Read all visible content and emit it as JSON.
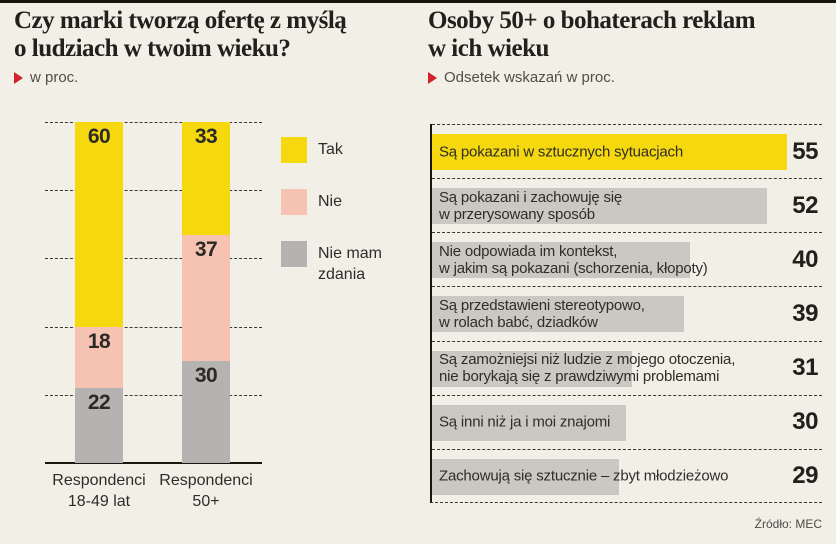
{
  "colors": {
    "background": "#f2efe7",
    "yellow": "#f6d80e",
    "pink": "#f6c3b3",
    "gray_dark": "#b4b3b1",
    "gray_light": "#cac8c2",
    "red_marker": "#d2222d",
    "ink": "#17160f"
  },
  "chart_data": [
    {
      "type": "bar",
      "subtype": "stacked-vertical",
      "title": "Czy marki tworzą ofertę z myślą o ludziach w twoim wieku?",
      "title_lines": [
        "Czy marki tworzą ofertę z myślą",
        "o ludziach w twoim wieku?"
      ],
      "subtitle": "w proc.",
      "categories": [
        "Respondenci 18-49 lat",
        "Respondenci 50+"
      ],
      "category_lines": [
        [
          "Respondenci",
          "18-49 lat"
        ],
        [
          "Respondenci",
          "50+"
        ]
      ],
      "series": [
        {
          "name": "Tak",
          "color": "#f6d80e",
          "values": [
            60,
            33
          ]
        },
        {
          "name": "Nie",
          "color": "#f6c3b3",
          "values": [
            18,
            37
          ]
        },
        {
          "name": "Nie mam zdania",
          "color": "#b4b3b1",
          "values": [
            22,
            30
          ]
        }
      ],
      "ylim": [
        0,
        100
      ],
      "gridlines": [
        100,
        80,
        60,
        40,
        20
      ],
      "grid_style": "dashed",
      "legend_position": "right"
    },
    {
      "type": "bar",
      "subtype": "horizontal",
      "title": "Osoby 50+ o bohaterach reklam w ich wieku",
      "title_lines": [
        "Osoby 50+ o bohaterach reklam",
        "w ich wieku"
      ],
      "subtitle": "Odsetek wskazań w proc.",
      "categories": [
        "Są pokazani w sztucznych sytuacjach",
        "Są pokazani i zachowuję się w przerysowany sposób",
        "Nie odpowiada im kontekst, w jakim są pokazani (schorzenia, kłopoty)",
        "Są przedstawieni stereotypowo, w rolach babć, dziadków",
        "Są zamożniejsi niż ludzie z mojego otoczenia, nie borykają się z prawdziwymi problemami",
        "Są inni niż ja i moi znajomi",
        "Zachowują się sztucznie – zbyt młodzieżowo"
      ],
      "label_lines": [
        [
          "Są pokazani w sztucznych sytuacjach"
        ],
        [
          "Są pokazani i zachowuję się",
          "w przerysowany sposób"
        ],
        [
          "Nie odpowiada im kontekst,",
          "w jakim są pokazani (schorzenia, kłopoty)"
        ],
        [
          "Są przedstawieni stereotypowo,",
          "w rolach babć, dziadków"
        ],
        [
          "Są zamożniejsi niż ludzie z mojego otoczenia,",
          "nie borykają się z prawdziwymi problemami"
        ],
        [
          "Są inni niż ja i moi znajomi"
        ],
        [
          "Zachowują się sztucznie – zbyt młodzieżowo"
        ]
      ],
      "values": [
        55,
        52,
        40,
        39,
        31,
        30,
        29
      ],
      "bar_colors": [
        "#f6d80e",
        "#cac8c2",
        "#cac8c2",
        "#cac8c2",
        "#cac8c2",
        "#cac8c2",
        "#cac8c2"
      ],
      "value_position": "right",
      "row_separators": "dashed",
      "source": "Źródło: MEC"
    }
  ]
}
